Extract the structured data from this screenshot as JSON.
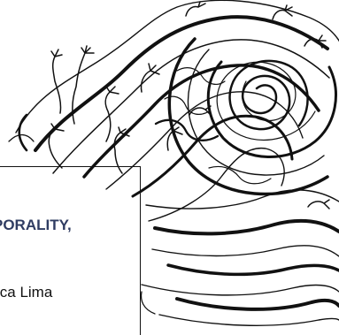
{
  "illustration": {
    "icon": "swirl-hands-drawing",
    "stroke_color": "#111111",
    "background": "#ffffff"
  },
  "text_box": {
    "title_fragment": "PORALITY,",
    "author_fragment": "ica Lima",
    "title_color": "#2f3c62"
  }
}
